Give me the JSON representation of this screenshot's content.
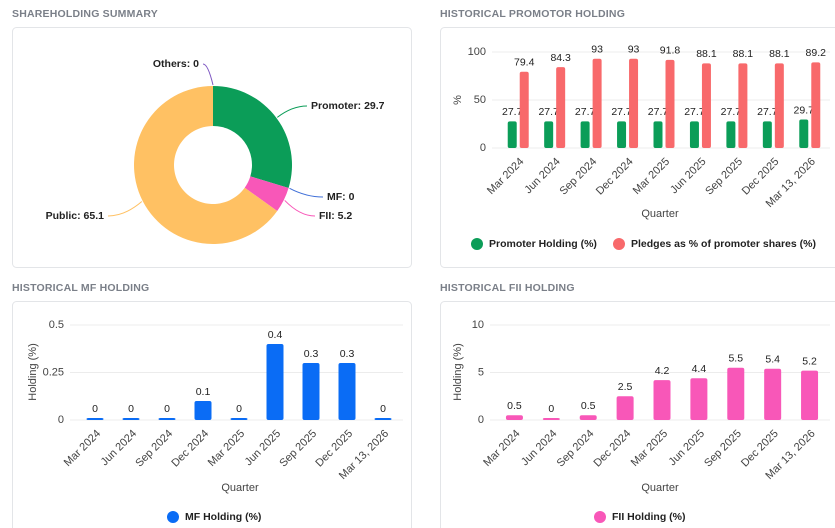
{
  "chart_data": [
    {
      "type": "pie",
      "title": "SHAREHOLDING SUMMARY",
      "donut": true,
      "values": [
        29.7,
        0,
        5.2,
        65.1,
        0
      ],
      "value_labels": [
        "Promoter: 29.7",
        "MF: 0",
        "FII: 5.2",
        "Public: 65.1",
        "Others: 0"
      ],
      "colors": [
        "#0b9d58",
        "#3f6fd8",
        "#f857b8",
        "#ffc163",
        "#7e57c2"
      ]
    },
    {
      "type": "bar",
      "title": "HISTORICAL PROMOTOR HOLDING",
      "categories": [
        "Mar 2024",
        "Jun 2024",
        "Sep 2024",
        "Dec 2024",
        "Mar 2025",
        "Jun 2025",
        "Sep 2025",
        "Dec 2025",
        "Mar 13, 2026"
      ],
      "series": [
        {
          "name": "Promoter Holding (%)",
          "color": "#0b9d58",
          "values": [
            27.7,
            27.7,
            27.7,
            27.7,
            27.7,
            27.7,
            27.7,
            27.7,
            29.7
          ]
        },
        {
          "name": "Pledges as % of promoter shares (%)",
          "color": "#f8696b",
          "values": [
            79.4,
            84.3,
            93,
            93,
            91.8,
            88.1,
            88.1,
            88.1,
            89.2
          ]
        }
      ],
      "ylim": [
        0,
        100
      ],
      "yticks": [
        0,
        50,
        100
      ],
      "ylabel": "%",
      "xlabel": "Quarter",
      "grid": true,
      "legend": "bottom"
    },
    {
      "type": "bar",
      "title": "HISTORICAL MF HOLDING",
      "categories": [
        "Mar 2024",
        "Jun 2024",
        "Sep 2024",
        "Dec 2024",
        "Mar 2025",
        "Jun 2025",
        "Sep 2025",
        "Dec 2025",
        "Mar 13, 2026"
      ],
      "series": [
        {
          "name": "MF Holding (%)",
          "color": "#0a6cf5",
          "values": [
            0,
            0,
            0,
            0.1,
            0,
            0.4,
            0.3,
            0.3,
            0
          ]
        }
      ],
      "ylim": [
        0,
        0.5
      ],
      "yticks": [
        0,
        0.25,
        0.5
      ],
      "ylabel": "Holding (%)",
      "xlabel": "Quarter",
      "grid": true,
      "legend": "bottom"
    },
    {
      "type": "bar",
      "title": "HISTORICAL FII HOLDING",
      "categories": [
        "Mar 2024",
        "Jun 2024",
        "Sep 2024",
        "Dec 2024",
        "Mar 2025",
        "Jun 2025",
        "Sep 2025",
        "Dec 2025",
        "Mar 13, 2026"
      ],
      "series": [
        {
          "name": "FII Holding (%)",
          "color": "#f857b8",
          "values": [
            0.5,
            0,
            0.5,
            2.5,
            4.2,
            4.4,
            5.5,
            5.4,
            5.2
          ]
        }
      ],
      "ylim": [
        0,
        10
      ],
      "yticks": [
        0,
        5,
        10
      ],
      "ylabel": "Holding (%)",
      "xlabel": "Quarter",
      "grid": true,
      "legend": "bottom"
    }
  ]
}
